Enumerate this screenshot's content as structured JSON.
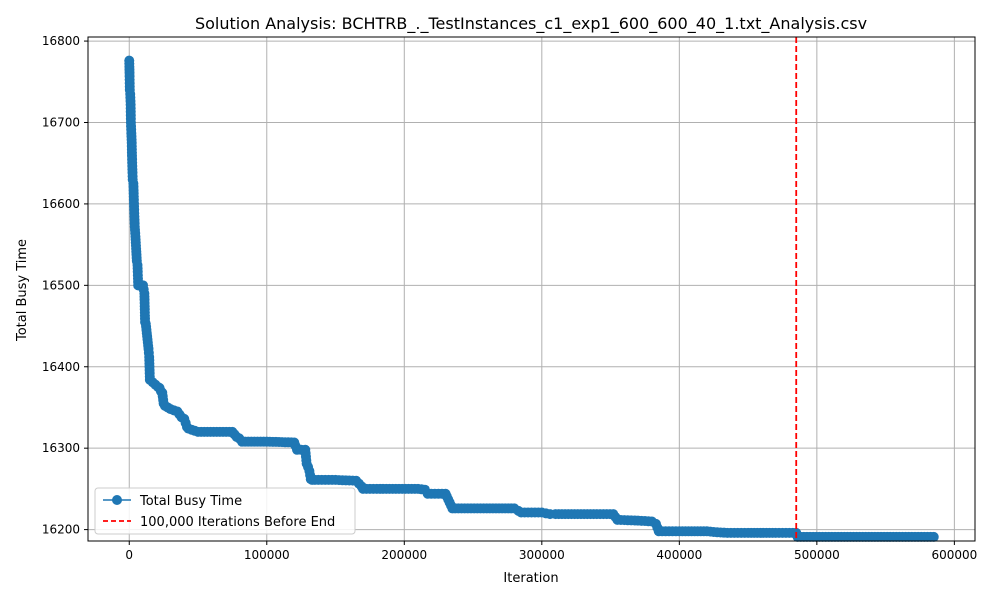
{
  "chart_data": {
    "type": "line",
    "title": "Solution Analysis: BCHTRB_._TestInstances_c1_exp1_600_600_40_1.txt_Analysis.csv",
    "xlabel": "Iteration",
    "ylabel": "Total Busy Time",
    "xlim": [
      -30000,
      615000
    ],
    "ylim": [
      16186,
      16805
    ],
    "x_ticks": [
      0,
      100000,
      200000,
      300000,
      400000,
      500000,
      600000
    ],
    "y_ticks": [
      16200,
      16300,
      16400,
      16500,
      16600,
      16700,
      16800
    ],
    "grid": true,
    "legend_position": "lower-left",
    "series": [
      {
        "name": "Total Busy Time",
        "color": "#1f77b4",
        "marker": "circle",
        "x": [
          0,
          200,
          400,
          700,
          1000,
          1200,
          1500,
          1800,
          2000,
          2500,
          3000,
          3500,
          4000,
          4500,
          5000,
          5500,
          6000,
          6500,
          7000,
          10000,
          11000,
          11500,
          12000,
          14000,
          14500,
          15000,
          21000,
          22000,
          23000,
          24000,
          25000,
          26000,
          30000,
          35000,
          38000,
          40000,
          42000,
          43000,
          50000,
          75000,
          78000,
          80000,
          82000,
          100000,
          120000,
          122000,
          128000,
          129000,
          130000,
          131000,
          132000,
          133000,
          135000,
          150000,
          165000,
          169000,
          170000,
          180000,
          210000,
          215000,
          217000,
          230000,
          235000,
          237000,
          260000,
          280000,
          283000,
          285000,
          300000,
          306000,
          310000,
          340000,
          352000,
          355000,
          370000,
          380000,
          383000,
          385000,
          400000,
          420000,
          425000,
          435000,
          450000,
          470000,
          485000,
          486000,
          520000,
          560000,
          585000
        ],
        "y": [
          16776,
          16761,
          16740,
          16735,
          16722,
          16700,
          16687,
          16675,
          16659,
          16630,
          16625,
          16597,
          16572,
          16560,
          16545,
          16530,
          16525,
          16500,
          16500,
          16500,
          16490,
          16455,
          16453,
          16422,
          16412,
          16384,
          16375,
          16374,
          16370,
          16368,
          16355,
          16352,
          16348,
          16345,
          16338,
          16336,
          16326,
          16324,
          16320,
          16320,
          16314,
          16312,
          16308,
          16308,
          16307,
          16298,
          16298,
          16281,
          16277,
          16272,
          16262,
          16261,
          16261,
          16261,
          16260,
          16253,
          16250,
          16250,
          16250,
          16249,
          16244,
          16244,
          16226,
          16226,
          16226,
          16226,
          16223,
          16221,
          16221,
          16219,
          16219,
          16219,
          16219,
          16212,
          16211,
          16210,
          16207,
          16198,
          16198,
          16198,
          16197,
          16196,
          16196,
          16196,
          16196,
          16191,
          16191,
          16191,
          16191
        ]
      },
      {
        "name": "100,000 Iterations Before End",
        "color": "#ff0000",
        "style": "dashed",
        "x_value": 485000
      }
    ]
  }
}
